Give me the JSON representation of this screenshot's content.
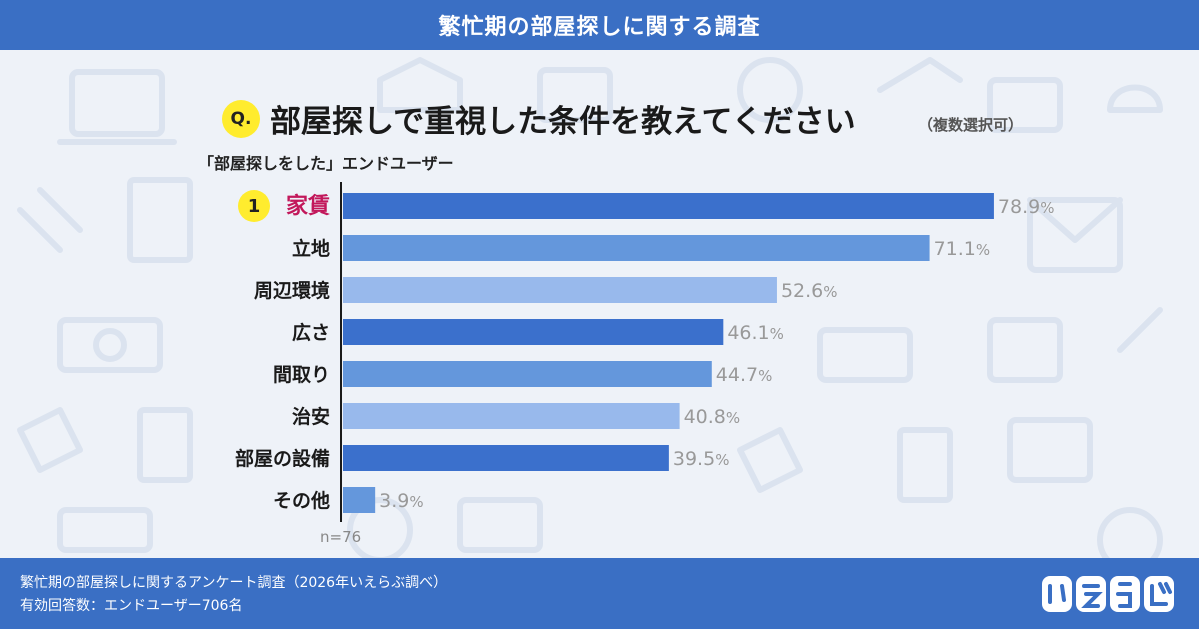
{
  "header": {
    "title": "繁忙期の部屋探しに関する調査"
  },
  "question": {
    "badge": "Q.",
    "text": "部屋探しで重視した条件を教えてください",
    "note": "（複数選択可）",
    "subtitle": "「部屋探しをした」エンドユーザー"
  },
  "rank_badge": "1",
  "n_label": "n=76",
  "footer": {
    "line1": "繁忙期の部屋探しに関するアンケート調査（2026年いえらぶ調べ）",
    "line2": "有効回答数：エンドユーザー706名",
    "logo_text": "いえらぶ"
  },
  "colors": {
    "header_bg": "#3a6fc4",
    "bar_dark": "#3b70cc",
    "bar_mid": "#6497dc",
    "bar_light": "#98b9ec",
    "highlight_label": "#c2185b",
    "badge_yellow": "#ffec2e"
  },
  "chart_data": {
    "type": "bar",
    "orientation": "horizontal",
    "categories": [
      "家賃",
      "立地",
      "周辺環境",
      "広さ",
      "間取り",
      "治安",
      "部屋の設備",
      "その他"
    ],
    "values": [
      78.9,
      71.1,
      52.6,
      46.1,
      44.7,
      40.8,
      39.5,
      3.9
    ],
    "unit": "%",
    "xlim": [
      0,
      100
    ],
    "grid": false,
    "highlight_index": 0
  }
}
